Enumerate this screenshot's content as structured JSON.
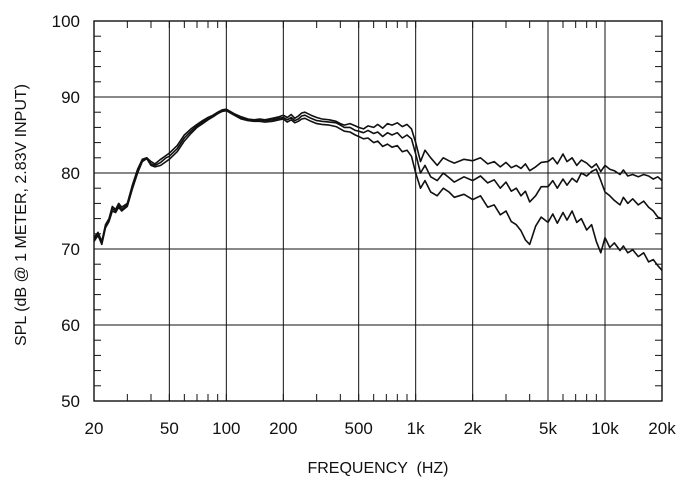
{
  "chart_data": {
    "type": "line",
    "title": "",
    "xlabel": "FREQUENCY  (HZ)",
    "ylabel": "SPL (dB @ 1 METER, 2.83V INPUT)",
    "x_scale": "log",
    "xlim": [
      20,
      20000
    ],
    "ylim": [
      50,
      100
    ],
    "grid": true,
    "legend": "none",
    "line_color": "#111111",
    "x_ticks": [
      {
        "value": 20,
        "label": "20"
      },
      {
        "value": 50,
        "label": "50"
      },
      {
        "value": 100,
        "label": "100"
      },
      {
        "value": 200,
        "label": "200"
      },
      {
        "value": 500,
        "label": "500"
      },
      {
        "value": 1000,
        "label": "1k"
      },
      {
        "value": 2000,
        "label": "2k"
      },
      {
        "value": 5000,
        "label": "5k"
      },
      {
        "value": 10000,
        "label": "10k"
      },
      {
        "value": 20000,
        "label": "20k"
      }
    ],
    "y_ticks": [
      {
        "value": 50,
        "label": "50"
      },
      {
        "value": 60,
        "label": "60"
      },
      {
        "value": 70,
        "label": "70"
      },
      {
        "value": 80,
        "label": "80"
      },
      {
        "value": 90,
        "label": "90"
      },
      {
        "value": 100,
        "label": "100"
      }
    ],
    "series": [
      {
        "x": [
          20,
          21,
          22,
          23,
          24,
          25,
          26,
          27,
          28,
          30,
          32,
          34,
          36,
          38,
          40,
          42,
          45,
          48,
          50,
          55,
          60,
          65,
          70,
          75,
          80,
          85,
          90,
          95,
          100,
          110,
          120,
          130,
          140,
          150,
          160,
          175,
          190,
          200,
          210,
          220,
          230,
          240,
          250,
          260,
          280,
          300,
          320,
          350,
          380,
          400,
          420,
          450,
          480,
          500,
          530,
          560,
          600,
          630,
          670,
          710,
          750,
          800,
          850,
          900,
          950,
          1000,
          1060,
          1120,
          1200,
          1300,
          1400,
          1500,
          1600,
          1800,
          2000,
          2200,
          2400,
          2600,
          2800,
          3000,
          3200,
          3400,
          3600,
          3800,
          4000,
          4300,
          4600,
          5000,
          5300,
          5600,
          6000,
          6300,
          6700,
          7100,
          7500,
          8000,
          8500,
          9000,
          9500,
          10000,
          10600,
          11200,
          12000,
          12500,
          13200,
          14000,
          15000,
          16000,
          17000,
          18000,
          19000,
          20000
        ],
        "values": [
          71.5,
          72.2,
          71.0,
          73.2,
          74.0,
          75.6,
          75.2,
          76.0,
          75.5,
          76.0,
          78.5,
          80.5,
          81.8,
          82.0,
          81.5,
          81.2,
          81.8,
          82.3,
          82.6,
          83.6,
          85.0,
          85.8,
          86.4,
          86.9,
          87.3,
          87.6,
          88.0,
          88.3,
          88.4,
          87.8,
          87.4,
          87.1,
          87.0,
          87.1,
          87.0,
          87.2,
          87.4,
          87.6,
          87.3,
          87.7,
          87.2,
          87.5,
          87.9,
          88.0,
          87.6,
          87.3,
          87.1,
          87.0,
          86.8,
          86.5,
          86.3,
          86.5,
          86.2,
          86.0,
          85.8,
          86.2,
          86.0,
          86.4,
          85.9,
          86.5,
          86.3,
          86.6,
          86.1,
          86.4,
          85.8,
          84.0,
          81.5,
          83.0,
          82.0,
          81.0,
          82.0,
          81.6,
          81.3,
          81.8,
          81.6,
          82.0,
          81.2,
          81.5,
          80.8,
          81.4,
          80.7,
          81.0,
          80.6,
          81.2,
          80.3,
          80.8,
          81.4,
          81.5,
          82.0,
          81.2,
          82.5,
          81.5,
          82.0,
          81.0,
          81.7,
          81.3,
          80.7,
          81.2,
          80.2,
          81.0,
          80.5,
          80.3,
          79.8,
          80.4,
          79.6,
          79.8,
          79.5,
          79.8,
          79.6,
          79.2,
          79.5,
          79.0
        ]
      },
      {
        "x": [
          20,
          21,
          22,
          23,
          24,
          25,
          26,
          27,
          28,
          30,
          32,
          34,
          36,
          38,
          40,
          42,
          45,
          48,
          50,
          55,
          60,
          65,
          70,
          75,
          80,
          85,
          90,
          95,
          100,
          110,
          120,
          130,
          140,
          150,
          160,
          175,
          190,
          200,
          210,
          220,
          230,
          240,
          250,
          260,
          280,
          300,
          320,
          350,
          380,
          400,
          420,
          450,
          480,
          500,
          530,
          560,
          600,
          630,
          670,
          710,
          750,
          800,
          850,
          900,
          950,
          1000,
          1060,
          1120,
          1200,
          1300,
          1400,
          1500,
          1600,
          1800,
          2000,
          2200,
          2400,
          2600,
          2800,
          3000,
          3200,
          3400,
          3600,
          3800,
          4000,
          4300,
          4600,
          5000,
          5300,
          5600,
          6000,
          6300,
          6700,
          7100,
          7500,
          8000,
          8500,
          9000,
          9500,
          10000,
          10600,
          11200,
          12000,
          12500,
          13200,
          14000,
          15000,
          16000,
          17000,
          18000,
          19000,
          20000
        ],
        "values": [
          71.2,
          72.0,
          70.8,
          73.0,
          73.8,
          75.3,
          75.0,
          75.7,
          75.2,
          75.8,
          78.3,
          80.3,
          81.7,
          82.0,
          81.2,
          81.0,
          81.4,
          82.0,
          82.2,
          83.2,
          84.6,
          85.5,
          86.2,
          86.7,
          87.1,
          87.5,
          87.9,
          88.2,
          88.3,
          87.7,
          87.2,
          87.0,
          86.9,
          87.0,
          86.9,
          87.0,
          87.2,
          87.3,
          87.0,
          87.3,
          86.9,
          87.1,
          87.5,
          87.6,
          87.2,
          86.9,
          86.8,
          86.7,
          86.6,
          86.3,
          86.0,
          86.0,
          85.6,
          85.5,
          85.3,
          85.6,
          85.2,
          85.4,
          84.8,
          85.3,
          85.0,
          85.3,
          84.6,
          85.0,
          84.5,
          82.5,
          80.0,
          81.0,
          79.5,
          79.0,
          80.0,
          79.4,
          78.8,
          79.5,
          79.0,
          79.6,
          78.7,
          79.1,
          78.0,
          78.8,
          77.6,
          78.0,
          77.0,
          77.6,
          76.2,
          77.0,
          78.2,
          78.2,
          79.0,
          78.0,
          79.2,
          78.4,
          79.3,
          78.8,
          80.0,
          79.6,
          80.2,
          80.5,
          79.0,
          77.5,
          77.0,
          76.4,
          75.8,
          76.8,
          76.0,
          76.6,
          75.8,
          76.3,
          75.5,
          75.0,
          74.2,
          74.0
        ]
      },
      {
        "x": [
          20,
          21,
          22,
          23,
          24,
          25,
          26,
          27,
          28,
          30,
          32,
          34,
          36,
          38,
          40,
          42,
          45,
          48,
          50,
          55,
          60,
          65,
          70,
          75,
          80,
          85,
          90,
          95,
          100,
          110,
          120,
          130,
          140,
          150,
          160,
          175,
          190,
          200,
          210,
          220,
          230,
          240,
          250,
          260,
          280,
          300,
          320,
          350,
          380,
          400,
          420,
          450,
          480,
          500,
          530,
          560,
          600,
          630,
          670,
          710,
          750,
          800,
          850,
          900,
          950,
          1000,
          1060,
          1120,
          1200,
          1300,
          1400,
          1500,
          1600,
          1800,
          2000,
          2200,
          2400,
          2600,
          2800,
          3000,
          3200,
          3400,
          3600,
          3800,
          4000,
          4300,
          4600,
          5000,
          5300,
          5600,
          6000,
          6300,
          6700,
          7100,
          7500,
          8000,
          8500,
          9000,
          9500,
          10000,
          10600,
          11200,
          12000,
          12500,
          13200,
          14000,
          15000,
          16000,
          17000,
          18000,
          19000,
          20000
        ],
        "values": [
          71.0,
          71.8,
          70.6,
          72.8,
          73.6,
          75.0,
          74.8,
          75.5,
          75.0,
          75.6,
          78.0,
          80.0,
          81.5,
          81.9,
          81.0,
          80.8,
          81.0,
          81.5,
          81.8,
          82.8,
          84.2,
          85.2,
          86.0,
          86.5,
          87.0,
          87.4,
          87.8,
          88.1,
          88.2,
          87.6,
          87.1,
          86.9,
          86.8,
          86.8,
          86.7,
          86.8,
          87.0,
          87.1,
          86.7,
          87.0,
          86.6,
          86.8,
          87.1,
          87.2,
          86.8,
          86.5,
          86.4,
          86.3,
          86.1,
          85.8,
          85.5,
          85.4,
          85.0,
          84.8,
          84.5,
          84.6,
          84.0,
          84.2,
          83.5,
          83.8,
          83.4,
          83.6,
          82.8,
          83.0,
          82.2,
          80.0,
          78.0,
          79.0,
          77.5,
          77.0,
          78.0,
          77.5,
          76.8,
          77.2,
          76.5,
          77.0,
          75.5,
          75.8,
          74.5,
          75.0,
          73.6,
          73.2,
          72.4,
          71.2,
          70.6,
          73.0,
          74.2,
          73.5,
          74.6,
          73.4,
          74.8,
          73.8,
          75.0,
          73.5,
          74.0,
          72.5,
          73.2,
          71.0,
          69.5,
          71.5,
          70.2,
          70.8,
          69.8,
          70.4,
          69.5,
          69.9,
          69.0,
          69.5,
          68.3,
          68.6,
          67.8,
          67.2
        ]
      }
    ]
  }
}
